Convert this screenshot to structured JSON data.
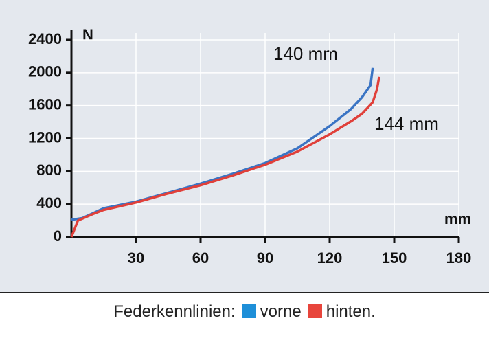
{
  "chart_data": {
    "type": "line",
    "y_label": "N",
    "x_label": "mm",
    "legend_title": "Federkennlinien:",
    "annotations": [
      "140 mm",
      "144 mm"
    ],
    "xlim": [
      0,
      180
    ],
    "xticks": [
      30,
      60,
      90,
      120,
      150,
      180
    ],
    "ylim": [
      0,
      2400
    ],
    "yticks": [
      0,
      400,
      800,
      1200,
      1600,
      2000,
      2400
    ],
    "grid": true,
    "series": [
      {
        "name": "vorne",
        "color": "#3a74c4",
        "legend_color": "#1e8fd8",
        "x": [
          0,
          5,
          10,
          15,
          30,
          45,
          60,
          75,
          90,
          105,
          120,
          130,
          135,
          139,
          140
        ],
        "values": [
          210,
          230,
          290,
          350,
          430,
          540,
          650,
          770,
          900,
          1080,
          1350,
          1560,
          1700,
          1850,
          2060
        ]
      },
      {
        "name": "hinten.",
        "color": "#e0403a",
        "legend_color": "#e8453c",
        "x": [
          0,
          3,
          10,
          15,
          30,
          45,
          60,
          75,
          90,
          105,
          120,
          130,
          135,
          140,
          142,
          143
        ],
        "values": [
          0,
          200,
          280,
          330,
          420,
          530,
          630,
          750,
          880,
          1040,
          1250,
          1410,
          1500,
          1640,
          1800,
          1950
        ]
      }
    ]
  }
}
